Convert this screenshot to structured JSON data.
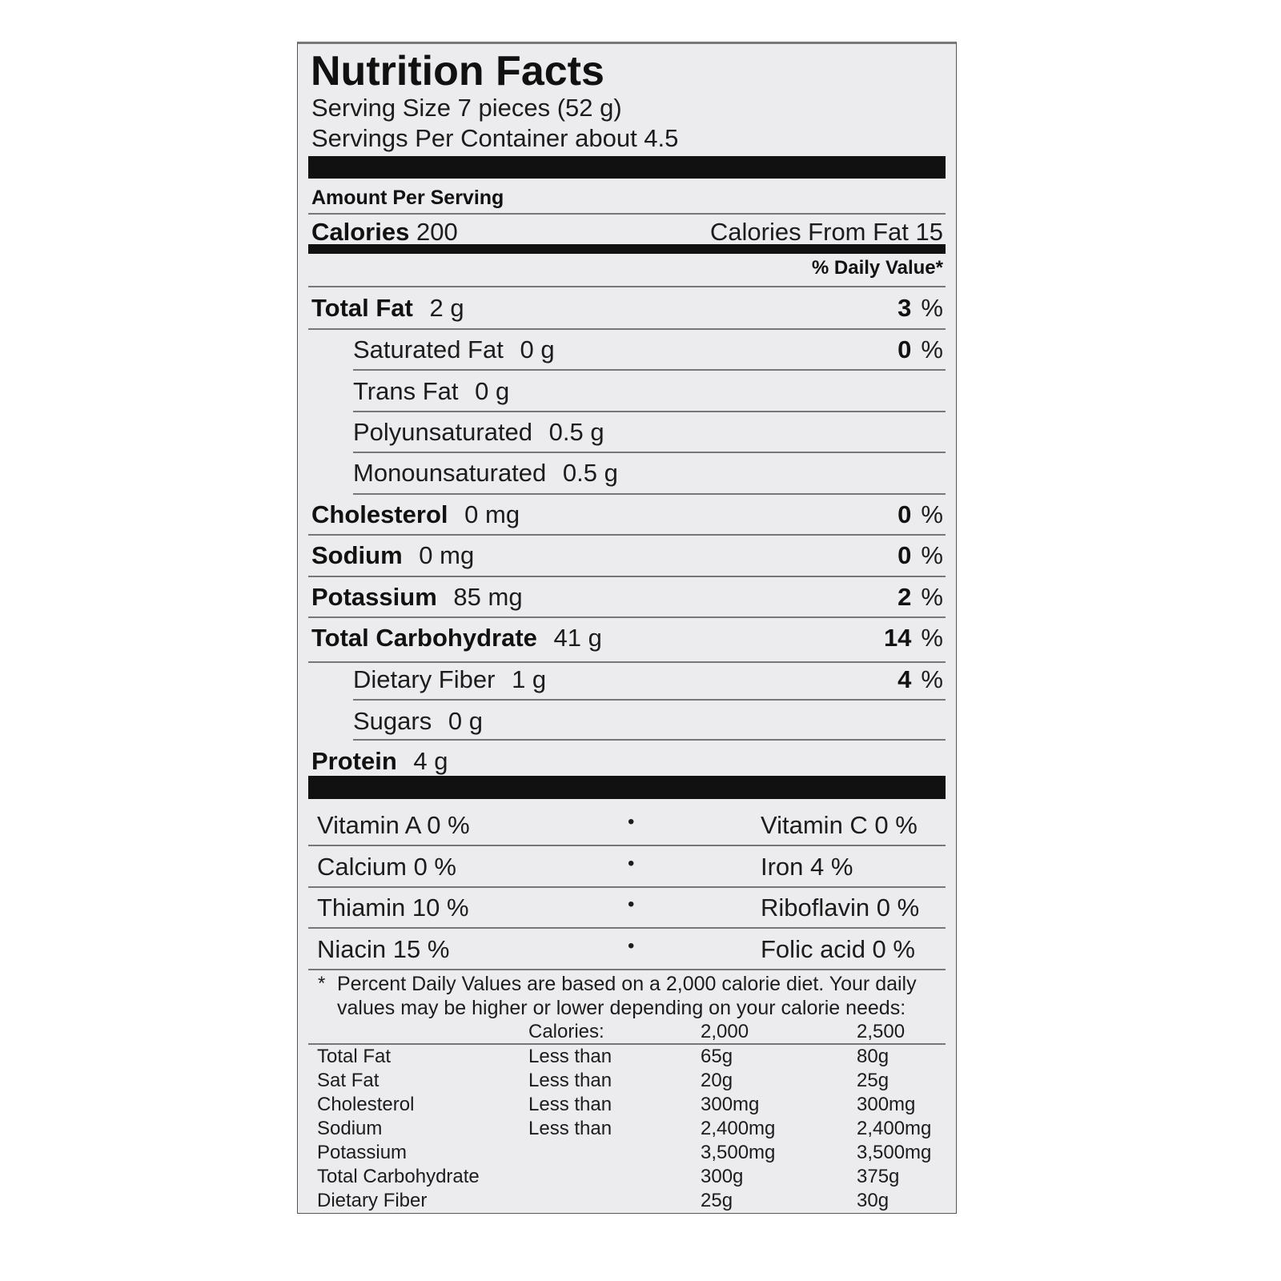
{
  "title": "Nutrition Facts",
  "serving_size": "Serving Size 7 pieces (52 g)",
  "servings_per_container": "Servings Per Container about 4.5",
  "amount_per_serving": "Amount Per Serving",
  "calories": {
    "label": "Calories",
    "value": "200",
    "from_fat": "Calories From Fat 15"
  },
  "daily_value_header": "% Daily Value*",
  "nutrients": [
    {
      "name": "Total Fat",
      "amount": "2 g",
      "dv": "3",
      "bold": true
    },
    {
      "name": "Saturated Fat",
      "amount": "0 g",
      "dv": "0",
      "bold": false
    },
    {
      "name": "Trans Fat",
      "amount": "0 g",
      "dv": "",
      "bold": false
    },
    {
      "name": "Polyunsaturated",
      "amount": "0.5 g",
      "dv": "",
      "bold": false
    },
    {
      "name": "Monounsaturated",
      "amount": "0.5 g",
      "dv": "",
      "bold": false
    },
    {
      "name": "Cholesterol",
      "amount": "0 mg",
      "dv": "0",
      "bold": true
    },
    {
      "name": "Sodium",
      "amount": "0 mg",
      "dv": "0",
      "bold": true
    },
    {
      "name": "Potassium",
      "amount": "85 mg",
      "dv": "2",
      "bold": true
    },
    {
      "name": "Total Carbohydrate",
      "amount": "41 g",
      "dv": "14",
      "bold": true
    },
    {
      "name": "Dietary Fiber",
      "amount": "1 g",
      "dv": "4",
      "bold": false
    },
    {
      "name": "Sugars",
      "amount": "0 g",
      "dv": "",
      "bold": false
    },
    {
      "name": "Protein",
      "amount": "4 g",
      "dv": "",
      "bold": true
    }
  ],
  "percent_sign": "%",
  "vitamins": [
    {
      "left": "Vitamin A  0 %",
      "right": "Vitamin C  0 %"
    },
    {
      "left": "Calcium  0 %",
      "right": "Iron  4 %"
    },
    {
      "left": "Thiamin  10 %",
      "right": "Riboflavin  0 %"
    },
    {
      "left": "Niacin  15 %",
      "right": "Folic acid  0 %"
    }
  ],
  "bullet": "•",
  "footnote": {
    "star": "*",
    "line1": "Percent Daily Values are based on a 2,000 calorie diet. Your daily",
    "line2": "values may be higher or lower depending on your calorie needs:"
  },
  "dv_table": {
    "header": [
      "",
      "Calories:",
      "2,000",
      "2,500"
    ],
    "rows": [
      [
        "Total Fat",
        "Less than",
        "65g",
        "80g"
      ],
      [
        "Sat Fat",
        "Less than",
        "20g",
        "25g"
      ],
      [
        "Cholesterol",
        "Less than",
        "300mg",
        "300mg"
      ],
      [
        "Sodium",
        "Less than",
        "2,400mg",
        "2,400mg"
      ],
      [
        "Potassium",
        "",
        "3,500mg",
        "3,500mg"
      ],
      [
        "Total Carbohydrate",
        "",
        "300g",
        "375g"
      ],
      [
        "Dietary Fiber",
        "",
        "25g",
        "30g"
      ]
    ]
  }
}
